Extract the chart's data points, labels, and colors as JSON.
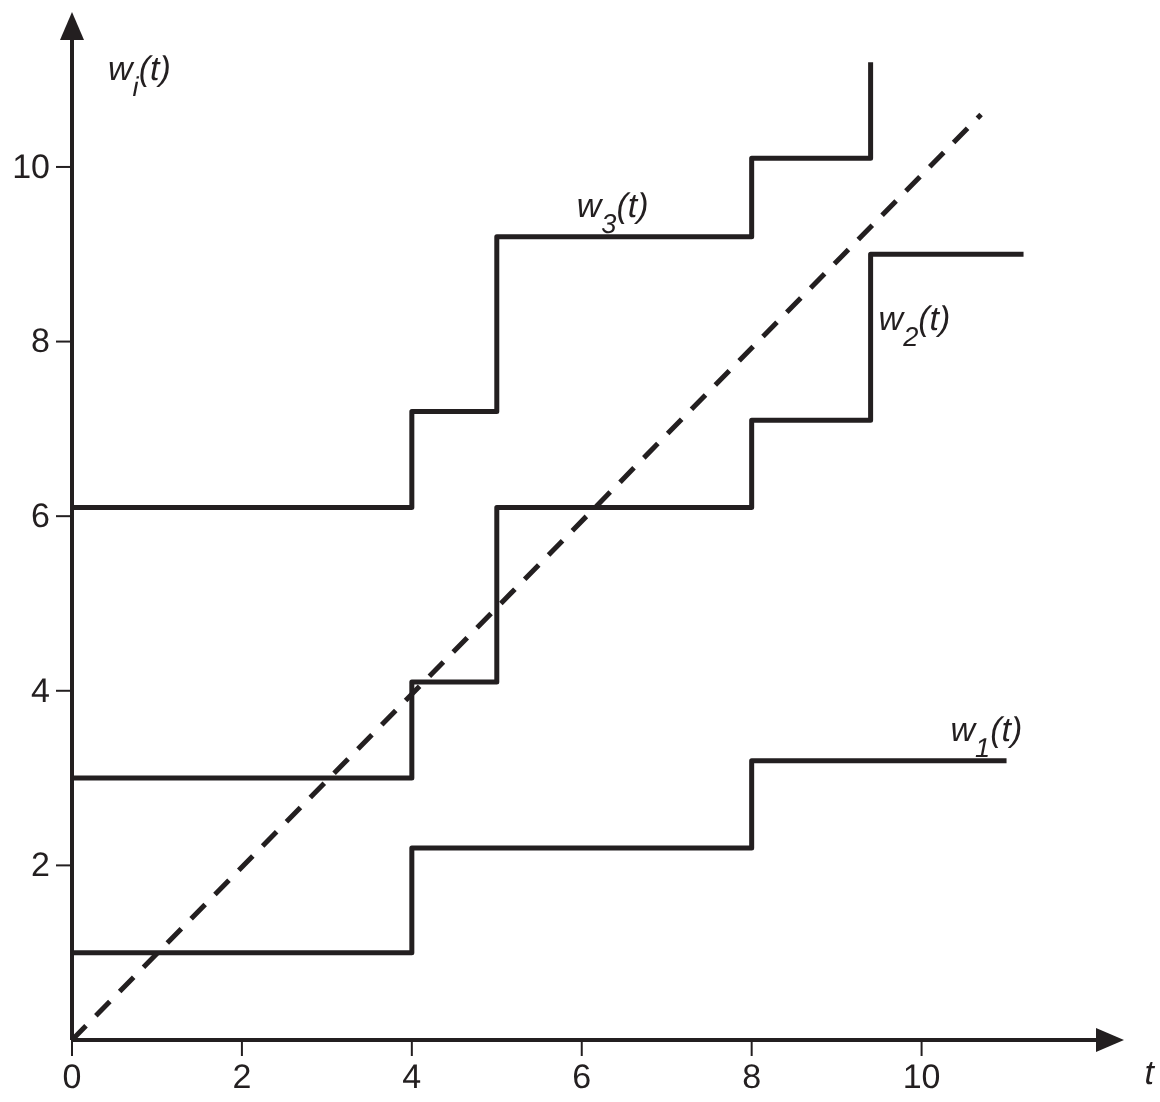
{
  "chart_data": {
    "type": "step",
    "xlabel": "t",
    "ylabel": "w$_{i}$(t)",
    "xlim": [
      0,
      12.1
    ],
    "ylim": [
      0,
      11.5
    ],
    "xticks": [
      0,
      2,
      4,
      6,
      8,
      10
    ],
    "yticks": [
      2,
      4,
      6,
      8,
      10
    ],
    "grid": false,
    "marker": "none",
    "series": [
      {
        "name": "w$_{1}$(t)",
        "color": "#231f20",
        "x": [
          0,
          4,
          8,
          11
        ],
        "values": [
          1,
          2.2,
          3.2,
          3.2
        ]
      },
      {
        "name": "w$_{2}$(t)",
        "color": "#231f20",
        "x": [
          0,
          4,
          5,
          8,
          9.4,
          11.2
        ],
        "values": [
          3,
          4.1,
          6.1,
          7.1,
          9,
          9
        ]
      },
      {
        "name": "w$_{3}$(t)",
        "color": "#231f20",
        "x": [
          0,
          4,
          5,
          8,
          9.4
        ],
        "values": [
          6.1,
          7.2,
          9.2,
          10.1,
          11.2
        ]
      },
      {
        "type": "line",
        "line_style": "dashed",
        "color": "#231f20",
        "x": [
          0,
          10.7
        ],
        "values": [
          0,
          10.6
        ]
      }
    ]
  }
}
